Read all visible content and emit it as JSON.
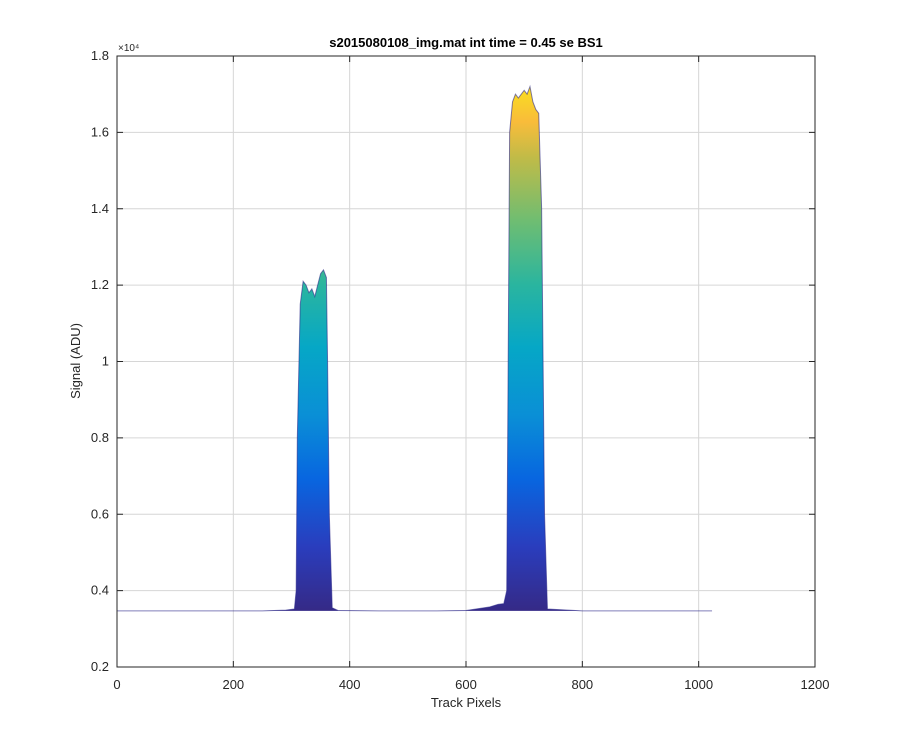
{
  "chart_data": {
    "type": "area",
    "title": "s2015080108_img.mat int time = 0.45 se   BS1",
    "xlabel": "Track Pixels",
    "ylabel": "Signal (ADU)",
    "xlim": [
      0,
      1200
    ],
    "ylim": [
      0.2,
      1.8
    ],
    "xticks": [
      0,
      200,
      400,
      600,
      800,
      1000,
      1200
    ],
    "xtick_labels": [
      "0",
      "200",
      "400",
      "600",
      "800",
      "1000",
      "1200"
    ],
    "yticks": [
      0.2,
      0.4,
      0.6,
      0.8,
      1.0,
      1.2,
      1.4,
      1.6,
      1.8
    ],
    "ytick_labels": [
      "0.2",
      "0.4",
      "0.6",
      "0.8",
      "1",
      "1.2",
      "1.4",
      "1.6",
      "1.8"
    ],
    "y_exponent_label": "×10⁴",
    "grid": true,
    "colormap": "parula",
    "series": [
      {
        "x": [
          0,
          250,
          290,
          305,
          308,
          310,
          315,
          320,
          325,
          330,
          335,
          340,
          345,
          350,
          355,
          360,
          362,
          365,
          370,
          380,
          450,
          550,
          600,
          640,
          655,
          665,
          670,
          675,
          680,
          685,
          690,
          695,
          700,
          705,
          710,
          715,
          720,
          725,
          730,
          735,
          740,
          800,
          900,
          1023
        ],
        "y": [
          0.347,
          0.347,
          0.349,
          0.352,
          0.4,
          0.8,
          1.15,
          1.21,
          1.2,
          1.18,
          1.19,
          1.17,
          1.2,
          1.23,
          1.24,
          1.22,
          1.0,
          0.6,
          0.355,
          0.348,
          0.347,
          0.347,
          0.348,
          0.357,
          0.364,
          0.366,
          0.4,
          1.6,
          1.68,
          1.7,
          1.69,
          1.7,
          1.71,
          1.7,
          1.72,
          1.68,
          1.66,
          1.65,
          1.4,
          0.6,
          0.352,
          0.347,
          0.347,
          0.347
        ]
      }
    ],
    "colors": {
      "baseline_line": "#2d2a8a",
      "grid": "#d6d6d6",
      "axis": "#262626"
    }
  }
}
